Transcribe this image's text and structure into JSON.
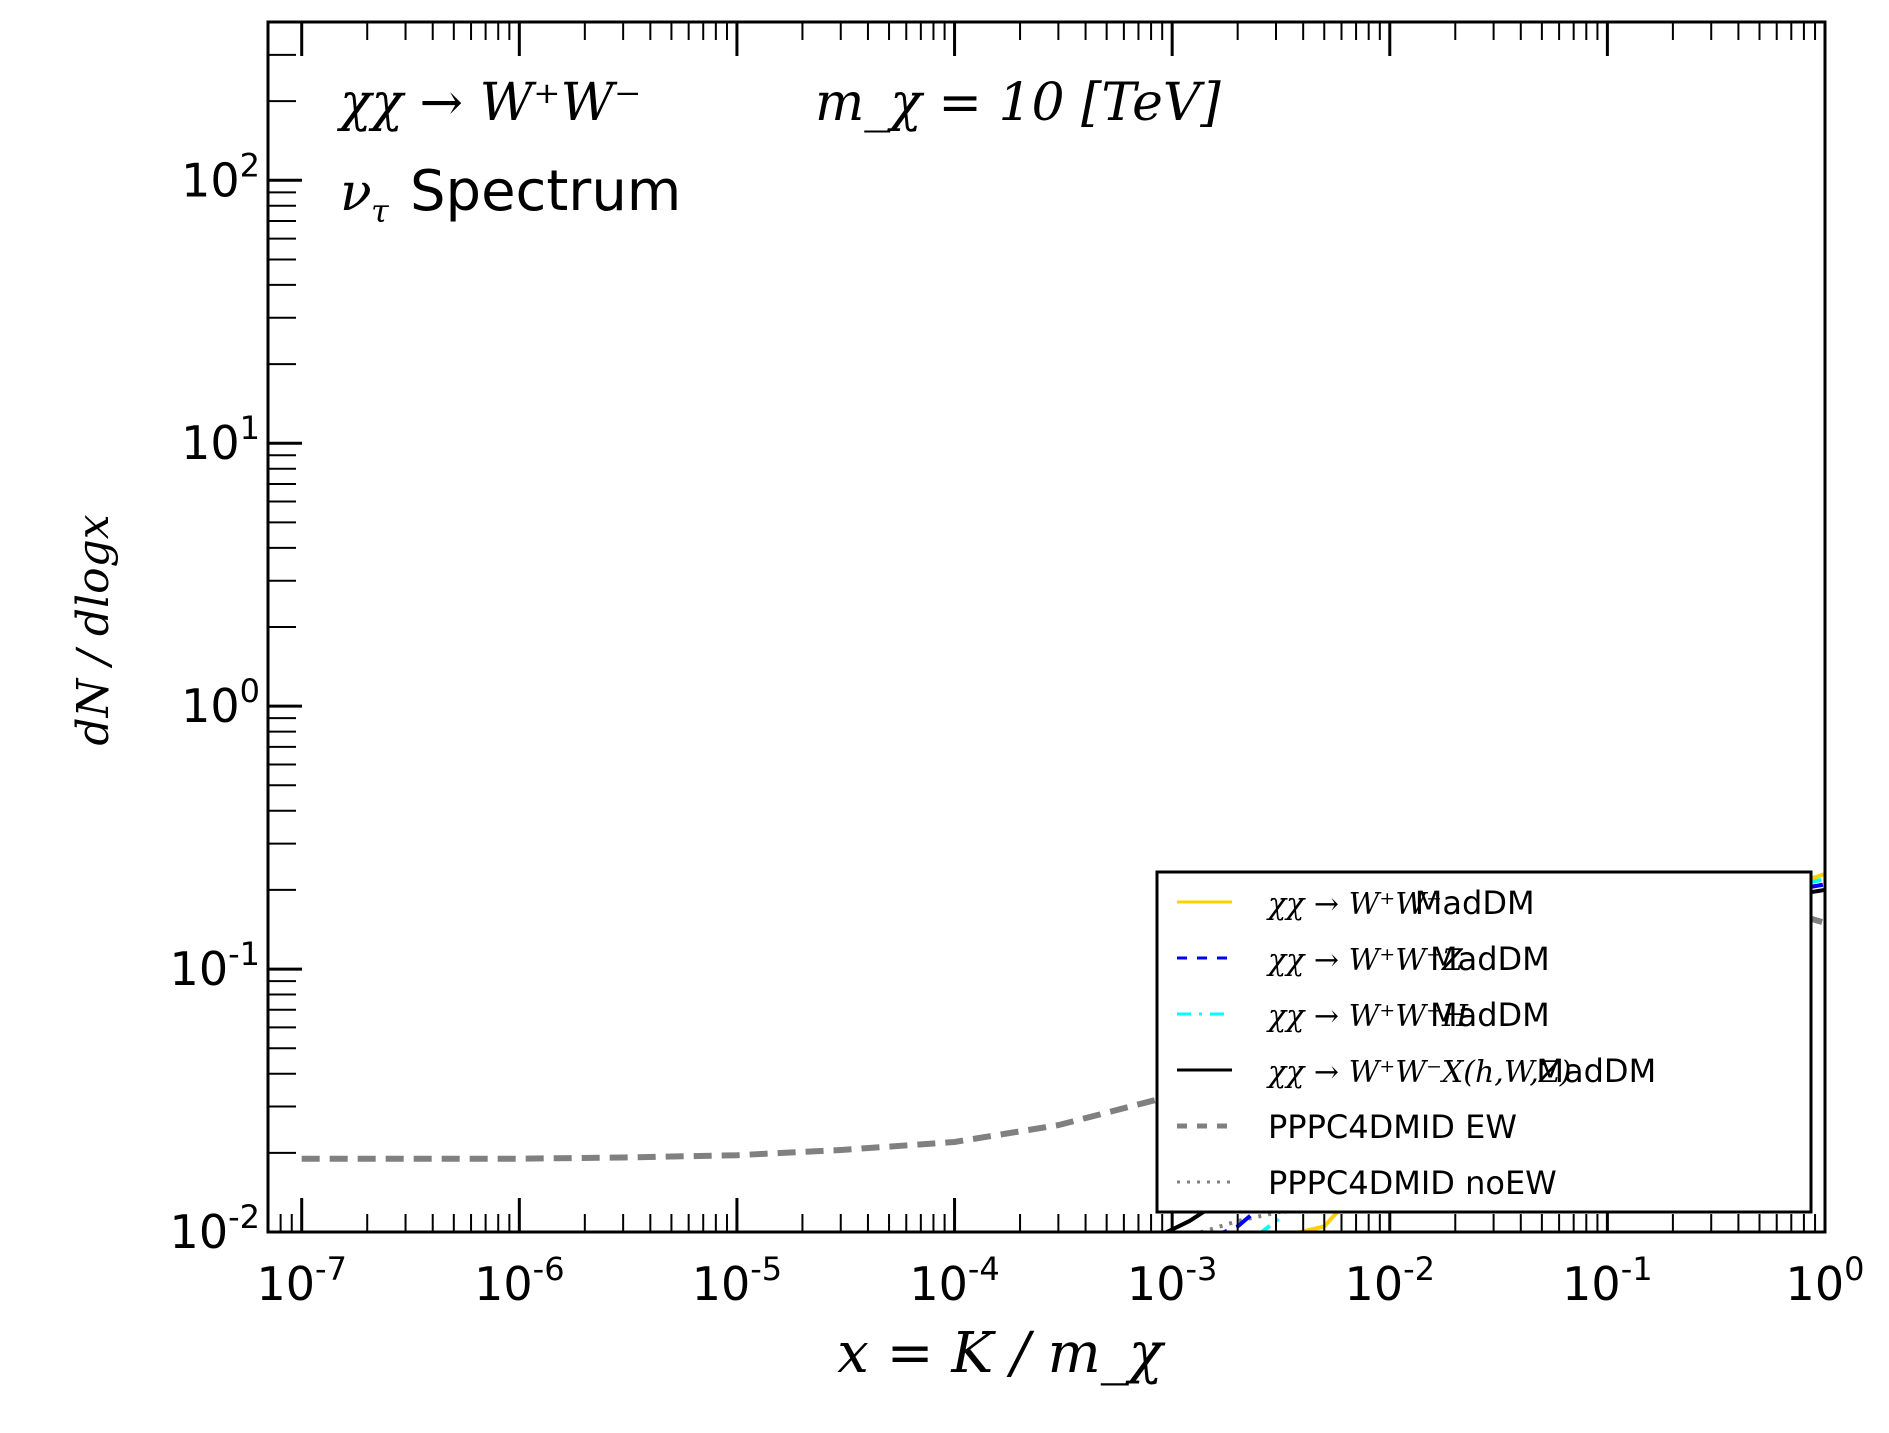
{
  "chart_data": {
    "type": "line",
    "title_line1": "χχ → W⁺W⁻",
    "title_mass": "m_χ = 10 [TeV]",
    "title_line2_sym": "ν",
    "title_line2_sub": "τ",
    "title_line2_text": "Spectrum",
    "xlabel": "x = K / m_χ",
    "ylabel": "dN / dlogx",
    "xscale": "log",
    "yscale": "log",
    "xlim": [
      7e-08,
      1
    ],
    "ylim": [
      0.01,
      400
    ],
    "x_ticks": [
      "10-7",
      "10-6",
      "10-5",
      "10-4",
      "10-3",
      "10-2",
      "10-1",
      "100"
    ],
    "y_ticks": [
      "10-2",
      "10-1",
      "100",
      "101",
      "102"
    ],
    "grid": false,
    "legend_position": "lower-right",
    "legend": [
      {
        "label_math": "χχ → W⁺W⁻",
        "label_text": "MadDM",
        "color": "#ffd000",
        "style": "solid"
      },
      {
        "label_math": "χχ → W⁺W⁻Z",
        "label_text": "MadDM",
        "color": "#0000ff",
        "style": "dashed"
      },
      {
        "label_math": "χχ → W⁺W⁻H",
        "label_text": "MadDM",
        "color": "#00ffff",
        "style": "dashdot"
      },
      {
        "label_math": "χχ → W⁺W⁻X(h,W,Z)",
        "label_text": "MadDM",
        "color": "#000000",
        "style": "solid"
      },
      {
        "label_math": "",
        "label_text": "PPPC4DMID EW",
        "color": "#808080",
        "style": "dashed"
      },
      {
        "label_math": "",
        "label_text": "PPPC4DMID noEW",
        "color": "#808080",
        "style": "dotted"
      }
    ],
    "series": [
      {
        "name": "PPPC4DMID EW",
        "color": "#808080",
        "style": "dashed",
        "x": [
          1e-07,
          1e-06,
          3e-06,
          1e-05,
          3e-05,
          0.0001,
          0.0003,
          0.001,
          0.003,
          0.01,
          0.03,
          0.1,
          0.3,
          0.6,
          1.0
        ],
        "y": [
          0.019,
          0.019,
          0.0192,
          0.0196,
          0.0205,
          0.022,
          0.0255,
          0.033,
          0.047,
          0.068,
          0.09,
          0.12,
          0.16,
          0.17,
          0.15
        ]
      },
      {
        "name": "PPPC4DMID noEW",
        "color": "#808080",
        "style": "dotted",
        "x": [
          0.0009,
          0.002,
          0.005,
          0.02,
          0.1,
          0.5,
          1.0
        ],
        "y": [
          0.009,
          0.011,
          0.013,
          0.04,
          0.1,
          0.18,
          0.2
        ]
      },
      {
        "name": "χχ → W⁺W⁻ MadDM",
        "color": "#ffd000",
        "style": "solid",
        "x": [
          0.0035,
          0.005,
          0.01,
          0.05,
          0.2,
          0.6,
          1.0
        ],
        "y": [
          0.0098,
          0.0105,
          0.02,
          0.07,
          0.14,
          0.2,
          0.23
        ]
      },
      {
        "name": "χχ → W⁺W⁻Z MadDM",
        "color": "#0000ff",
        "style": "dashed",
        "x": [
          0.0015,
          0.002,
          0.005,
          0.02,
          0.1,
          0.5,
          1.0
        ],
        "y": [
          0.0095,
          0.0105,
          0.02,
          0.05,
          0.12,
          0.19,
          0.21
        ]
      },
      {
        "name": "χχ → W⁺W⁻H MadDM",
        "color": "#00ffff",
        "style": "dashdot",
        "x": [
          0.0025,
          0.003,
          0.006,
          0.03,
          0.15,
          0.6,
          1.0
        ],
        "y": [
          0.0098,
          0.011,
          0.02,
          0.055,
          0.13,
          0.2,
          0.22
        ]
      },
      {
        "name": "χχ → W⁺W⁻X(h,W,Z) MadDM",
        "color": "#000000",
        "style": "solid",
        "x": [
          0.0009,
          0.0012,
          0.003,
          0.01,
          0.05,
          0.3,
          1.0
        ],
        "y": [
          0.0098,
          0.011,
          0.018,
          0.045,
          0.1,
          0.17,
          0.2
        ]
      }
    ]
  }
}
